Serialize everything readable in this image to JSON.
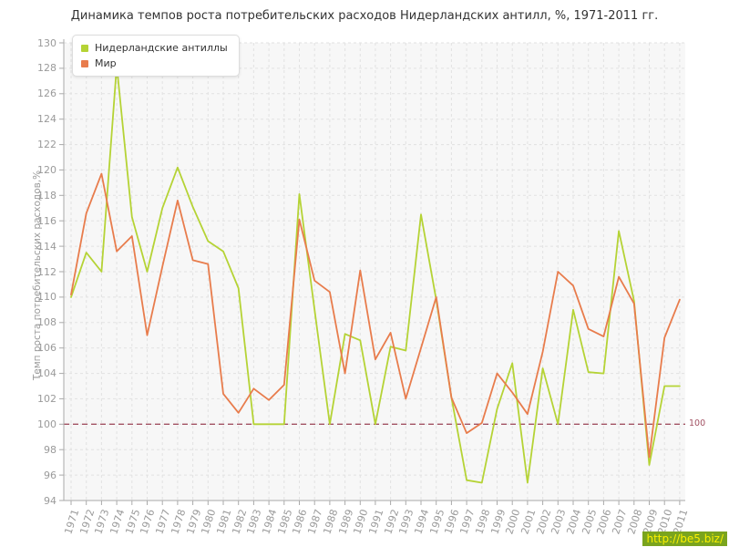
{
  "title": "Динамика темпов роста потребительских расходов Нидерландских антилл, %, 1971-2011 гг.",
  "watermark": {
    "text": "http://be5.biz/",
    "bg": "#7aa41e",
    "color": "#fcf000"
  },
  "chart_data": {
    "type": "line",
    "title": "Динамика темпов роста потребительских расходов Нидерландских антилл, %, 1971-2011 гг.",
    "xlabel": "",
    "ylabel": "Темп роста потребительских расходов,%",
    "ylim": [
      94,
      130
    ],
    "y_tick_step": 2,
    "grid": true,
    "legend_position": "top-left",
    "x": [
      1971,
      1972,
      1973,
      1974,
      1975,
      1976,
      1977,
      1978,
      1979,
      1980,
      1981,
      1982,
      1983,
      1984,
      1985,
      1986,
      1987,
      1988,
      1989,
      1990,
      1991,
      1992,
      1993,
      1994,
      1995,
      1996,
      1997,
      1998,
      1999,
      2000,
      2001,
      2002,
      2003,
      2004,
      2005,
      2006,
      2007,
      2008,
      2009,
      2010,
      2011
    ],
    "series": [
      {
        "name": "Нидерландские антиллы",
        "color": "#b5d335",
        "values": [
          110.0,
          113.5,
          112.0,
          128.2,
          116.3,
          112.0,
          117.0,
          120.2,
          117.1,
          114.4,
          113.6,
          110.7,
          100.0,
          100.0,
          100.0,
          118.1,
          109.0,
          100.0,
          107.1,
          106.6,
          100.0,
          106.1,
          105.8,
          116.5,
          109.8,
          102.1,
          95.6,
          95.4,
          101.2,
          104.8,
          95.4,
          104.4,
          100.0,
          109.0,
          104.1,
          104.0,
          115.2,
          109.7,
          96.8,
          103.0,
          103.0
        ]
      },
      {
        "name": "Мир",
        "color": "#e87c4c",
        "values": [
          110.2,
          116.6,
          119.7,
          113.6,
          114.8,
          107.0,
          112.4,
          117.6,
          112.9,
          112.6,
          102.4,
          100.9,
          102.8,
          101.9,
          103.1,
          116.1,
          111.3,
          110.4,
          104.0,
          112.1,
          105.1,
          107.2,
          102.0,
          106.0,
          110.0,
          102.1,
          99.3,
          100.1,
          104.0,
          102.5,
          100.8,
          105.7,
          112.0,
          110.9,
          107.5,
          106.9,
          111.6,
          109.5,
          97.4,
          106.8,
          109.8
        ]
      }
    ],
    "ref_line": {
      "value": 100,
      "label": "100",
      "color": "#a25263"
    },
    "style": {
      "plot_bg": "#f7f7f7",
      "grid_color": "#e2e2e2",
      "axis_color": "#aaaaaa",
      "tick_color": "#aaaaaa",
      "label_color": "#9a9a9a"
    }
  }
}
